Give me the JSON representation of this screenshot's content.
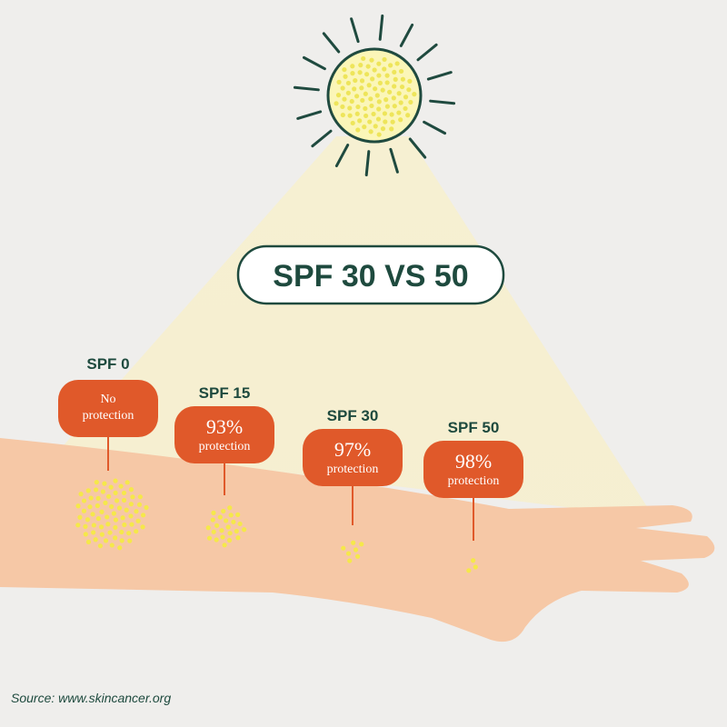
{
  "title": "SPF 30 VS 50",
  "levels": [
    {
      "spf": "SPF 0",
      "lines": [
        "No",
        "protection"
      ]
    },
    {
      "spf": "SPF 15",
      "percent": "93%",
      "text": "protection"
    },
    {
      "spf": "SPF 30",
      "percent": "97%",
      "text": "protection"
    },
    {
      "spf": "SPF 50",
      "percent": "98%",
      "text": "protection"
    }
  ],
  "source": "Source: www.skincancer.org"
}
